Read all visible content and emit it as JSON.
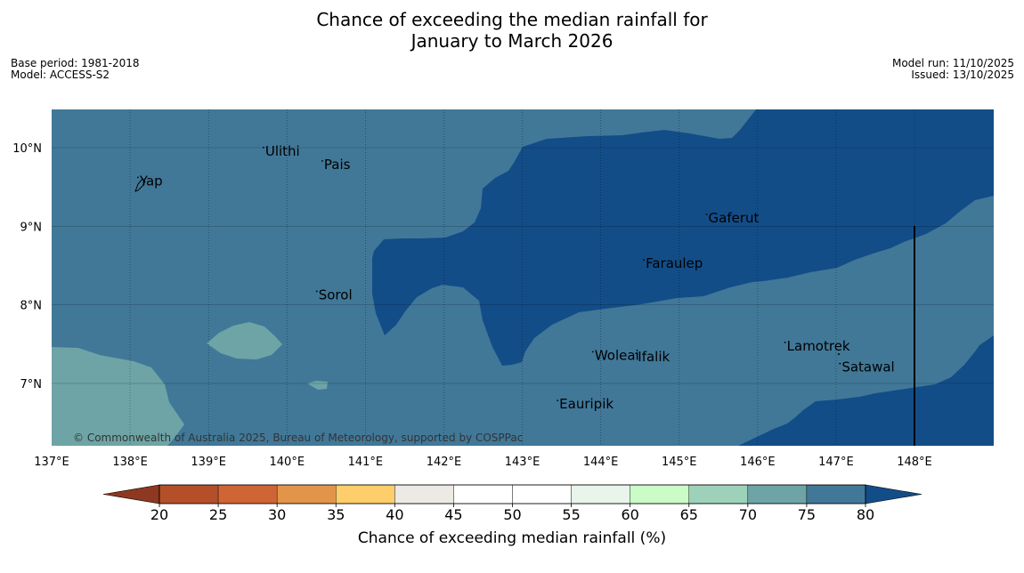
{
  "title": {
    "line1": "Chance of exceeding the median rainfall for",
    "line2": "January to March 2026"
  },
  "meta_left": {
    "base_period": "Base period: 1981-2018",
    "model": "Model: ACCESS-S2"
  },
  "meta_right": {
    "model_run": "Model run: 11/10/2025",
    "issued": "Issued: 13/10/2025"
  },
  "map": {
    "lon_range": [
      137,
      149
    ],
    "lat_range": [
      6.2,
      10.5
    ],
    "lon_ticks": [
      "137°E",
      "138°E",
      "139°E",
      "140°E",
      "141°E",
      "142°E",
      "143°E",
      "144°E",
      "145°E",
      "146°E",
      "147°E",
      "148°E"
    ],
    "lat_ticks": [
      "10°N",
      "9°N",
      "8°N",
      "7°N"
    ],
    "places": [
      {
        "name": "Yap",
        "lon": 138.1,
        "lat": 9.52
      },
      {
        "name": "Ulithi",
        "lon": 139.7,
        "lat": 9.9
      },
      {
        "name": "Pais",
        "lon": 140.45,
        "lat": 9.73
      },
      {
        "name": "Gaferut",
        "lon": 145.35,
        "lat": 9.05
      },
      {
        "name": "Faraulep",
        "lon": 144.55,
        "lat": 8.47
      },
      {
        "name": "Sorol",
        "lon": 140.38,
        "lat": 8.07
      },
      {
        "name": "Woleai",
        "lon": 143.9,
        "lat": 7.3
      },
      {
        "name": "Ifalik",
        "lon": 144.45,
        "lat": 7.28
      },
      {
        "name": "Lamotrek",
        "lon": 146.35,
        "lat": 7.42
      },
      {
        "name": "Satawal",
        "lon": 147.05,
        "lat": 7.15
      },
      {
        "name": "Eauripik",
        "lon": 143.45,
        "lat": 6.68
      }
    ],
    "copyright": "© Commonwealth of Australia 2025, Bureau of Meteorology, supported by COSPPac",
    "colors": {
      "band_70_75": "#6ea4a6",
      "band_75_80": "#417898",
      "band_over_80": "#134d88"
    }
  },
  "colorbar": {
    "title": "Chance of exceeding median rainfall (%)",
    "ticks": [
      "20",
      "25",
      "30",
      "35",
      "40",
      "45",
      "50",
      "55",
      "60",
      "65",
      "70",
      "75",
      "80"
    ],
    "colors": [
      "#b44f2a",
      "#cf6535",
      "#e2954a",
      "#fece6a",
      "#ede9e4",
      "#ffffff",
      "#ffffff",
      "#e9f5eb",
      "#cbfcc8",
      "#9ed1b9",
      "#6ea4a6",
      "#417898"
    ],
    "under_color": "#8e3821",
    "over_color": "#134d88"
  }
}
